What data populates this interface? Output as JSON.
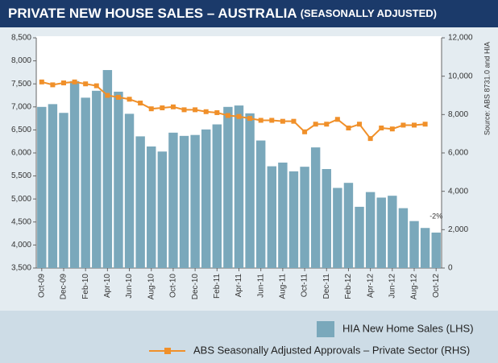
{
  "chart_data": {
    "type": "bar_line",
    "title": "PRIVATE NEW HOUSE SALES – AUSTRALIA",
    "subtitle": "(SEASONALLY ADJUSTED)",
    "y2_label": "Source: ABS 8731.0 and HIA",
    "annotation": "-2%",
    "categories": [
      "Oct-09",
      null,
      "Dec-09",
      null,
      "Feb-10",
      null,
      "Apr-10",
      null,
      "Jun-10",
      null,
      "Aug-10",
      null,
      "Oct-10",
      null,
      "Dec-10",
      null,
      "Feb-11",
      null,
      "Apr-11",
      null,
      "Jun-11",
      null,
      "Aug-11",
      null,
      "Oct-11",
      null,
      "Dec-11",
      null,
      "Feb-12",
      null,
      "Apr-12",
      null,
      "Jun-12",
      null,
      "Aug-12",
      null,
      "Oct-12"
    ],
    "series": [
      {
        "name": "HIA New Home Sales (LHS)",
        "kind": "bar",
        "color": "#7aa8bb",
        "axis": "y",
        "values": [
          7000,
          7060,
          6870,
          7560,
          7200,
          7350,
          7800,
          7330,
          6850,
          6360,
          6140,
          6030,
          6440,
          6370,
          6390,
          6510,
          6620,
          7000,
          7030,
          6860,
          6270,
          5710,
          5790,
          5600,
          5700,
          6120,
          5650,
          5240,
          5350,
          4830,
          5150,
          5030,
          5070,
          4800,
          4520,
          4370,
          4270
        ]
      },
      {
        "name": "ABS Seasonally Adjusted Approvals – Private Sector (RHS)",
        "kind": "line",
        "color": "#f0902a",
        "axis": "y2",
        "values": [
          9700,
          9550,
          9650,
          9700,
          9600,
          9500,
          9000,
          8900,
          8800,
          8600,
          8300,
          8350,
          8400,
          8250,
          8250,
          8150,
          8100,
          7950,
          7900,
          7800,
          7700,
          7700,
          7650,
          7650,
          7100,
          7500,
          7500,
          7750,
          7300,
          7500,
          6750,
          7300,
          7250,
          7450,
          7450,
          7500,
          null
        ]
      }
    ],
    "ylim": [
      3500,
      8500
    ],
    "yticks": [
      {
        "value": 3500,
        "label": "3,500"
      },
      {
        "value": 4000,
        "label": "4,000"
      },
      {
        "value": 4500,
        "label": "4,500"
      },
      {
        "value": 5000,
        "label": "5,000"
      },
      {
        "value": 5500,
        "label": "5,500"
      },
      {
        "value": 6000,
        "label": "6,000"
      },
      {
        "value": 6500,
        "label": "6,500"
      },
      {
        "value": 7000,
        "label": "7,000"
      },
      {
        "value": 7500,
        "label": "7,500"
      },
      {
        "value": 8000,
        "label": "8,000"
      },
      {
        "value": 8500,
        "label": "8,500"
      }
    ],
    "y2lim": [
      0,
      12000
    ],
    "y2ticks": [
      0,
      {
        "value": 2000,
        "label": "2,000"
      },
      {
        "value": 4000,
        "label": "4,000"
      },
      {
        "value": 6000,
        "label": "6,000"
      },
      {
        "value": 8000,
        "label": "8,000"
      },
      {
        "value": 10000,
        "label": "10,000"
      },
      {
        "value": 12000,
        "label": "12,000"
      }
    ],
    "grid": false
  }
}
